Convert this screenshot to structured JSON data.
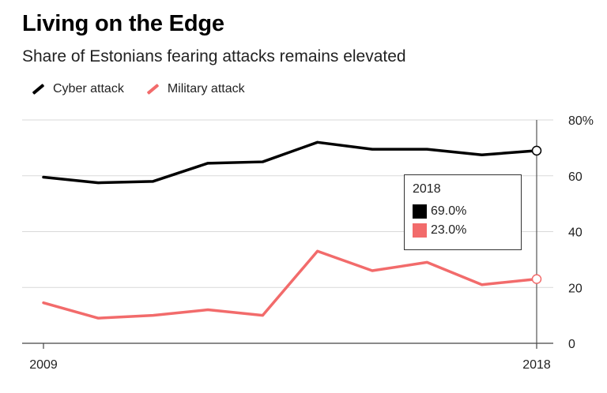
{
  "chart_data": {
    "type": "line",
    "title": "Living on the Edge",
    "subtitle": "Share of Estonians fearing attacks remains elevated",
    "x": [
      2009,
      2010,
      2011,
      2012,
      2013,
      2014,
      2015,
      2016,
      2017,
      2018
    ],
    "x_tick_labels": [
      "2009",
      "2018"
    ],
    "y_ticks": [
      "0",
      "20",
      "40",
      "60",
      "80%"
    ],
    "ylim": [
      0,
      80
    ],
    "xlabel": "",
    "ylabel": "",
    "grid": true,
    "legend_position": "top-left",
    "series": [
      {
        "name": "Cyber attack",
        "color": "#000000",
        "values": [
          59.5,
          57.5,
          58,
          64.5,
          65,
          72,
          69.5,
          69.5,
          67.5,
          69.0
        ]
      },
      {
        "name": "Military attack",
        "color": "#f26b6b",
        "values": [
          14.5,
          9,
          10,
          12,
          10,
          33,
          26,
          29,
          21,
          23.0
        ]
      }
    ],
    "tooltip": {
      "year": "2018",
      "entries": [
        {
          "label": "69.0%",
          "color": "#000000"
        },
        {
          "label": "23.0%",
          "color": "#f26b6b"
        }
      ]
    }
  }
}
